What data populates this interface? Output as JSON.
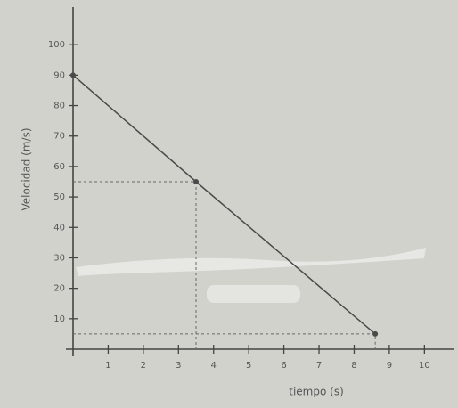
{
  "chart_data": {
    "type": "line",
    "x_label": "tiempo (s)",
    "y_label": "Velocidad (m/s)",
    "x": [
      0,
      3.5,
      8.6
    ],
    "values": [
      90,
      55,
      5
    ],
    "color": "#4a4a4a",
    "xlim": [
      0,
      10.6
    ],
    "ylim": [
      0,
      110
    ],
    "xticks": [
      1,
      2,
      3,
      4,
      5,
      6,
      7,
      8,
      9,
      10
    ],
    "yticks": [
      10,
      20,
      30,
      40,
      50,
      60,
      70,
      80,
      90,
      100
    ],
    "guides": true
  }
}
